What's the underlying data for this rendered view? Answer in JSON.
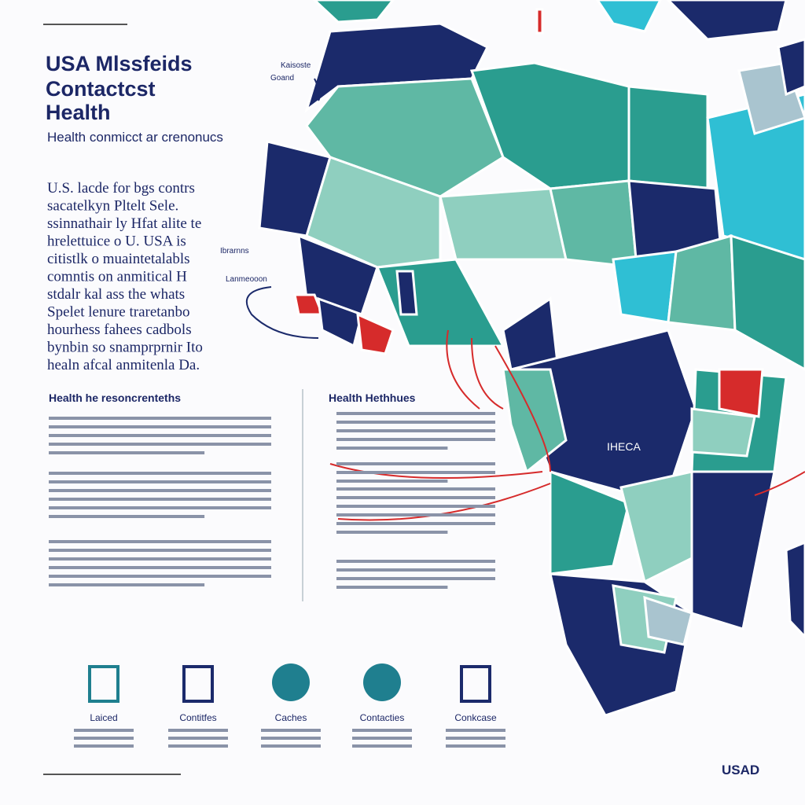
{
  "header": {
    "title_lines": [
      "USA Mlssfeids",
      "Contactcst",
      "Health"
    ],
    "subtitle": "Health conmicct ar crenonucs"
  },
  "intro": {
    "lines": [
      "U.S. lacde for bgs contrs",
      "sacatelkyn  Pltelt Sele.",
      "ssinnathair ly Hfat alite te",
      "hrelettuice o U.  USA is",
      "citistlk o muaintetalabls",
      "comntis  on anmitical  H",
      "stdalr kal ass the whats",
      "Spelet lenure traretanbo",
      "hourhess fahees cadbols",
      "bynbin so snamprprnir Ito",
      "healn afcal anmitenla Da."
    ]
  },
  "map_labels": [
    "Kaisoste",
    "Goand",
    "Ibrarnns",
    "Lanmeooon",
    "IHECA"
  ],
  "sections": [
    {
      "heading": "Health he resoncrenteths"
    },
    {
      "heading": "Health Hethhues"
    }
  ],
  "icons": [
    {
      "label": "Laiced"
    },
    {
      "label": "Contitfes"
    },
    {
      "label": "Caches"
    },
    {
      "label": "Contacties"
    },
    {
      "label": "Conkcase"
    }
  ],
  "logo": "USAD"
}
